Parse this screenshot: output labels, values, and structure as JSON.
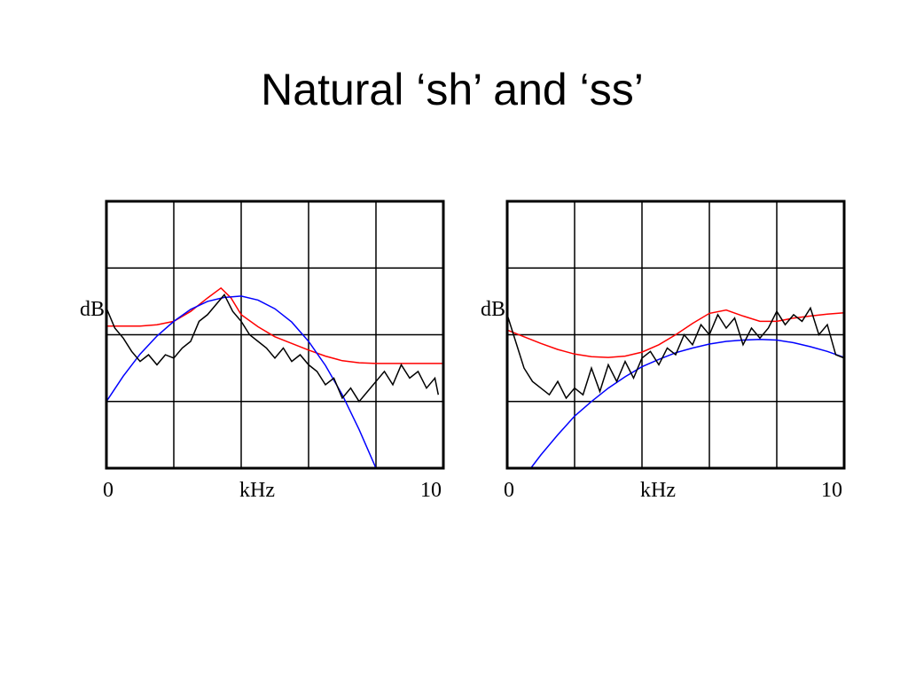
{
  "title": "Natural ‘sh’ and ‘ss’",
  "chart_data": [
    {
      "type": "line",
      "xlabel": "kHz",
      "ylabel": "dB",
      "xlim": [
        0,
        10
      ],
      "ylim": [
        0,
        4
      ],
      "xticks": [
        0,
        10
      ],
      "xgrid": [
        2,
        4,
        6,
        8
      ],
      "ygrid": [
        1,
        2,
        3
      ],
      "series": [
        {
          "color": "#ff0000",
          "x": [
            0,
            0.5,
            1,
            1.5,
            2,
            2.5,
            3,
            3.4,
            3.7,
            4,
            4.5,
            5,
            5.5,
            6,
            6.5,
            7,
            7.5,
            8,
            9,
            10
          ],
          "values": [
            2.13,
            2.13,
            2.13,
            2.15,
            2.2,
            2.35,
            2.55,
            2.7,
            2.55,
            2.3,
            2.12,
            1.97,
            1.87,
            1.77,
            1.68,
            1.61,
            1.58,
            1.57,
            1.57,
            1.57
          ]
        },
        {
          "color": "#0000ff",
          "x": [
            0,
            0.5,
            1,
            1.5,
            2,
            2.5,
            3,
            3.5,
            4,
            4.5,
            5,
            5.5,
            6,
            6.5,
            7,
            7.5,
            8
          ],
          "values": [
            1.0,
            1.38,
            1.71,
            1.98,
            2.2,
            2.38,
            2.5,
            2.56,
            2.58,
            2.52,
            2.39,
            2.19,
            1.9,
            1.54,
            1.1,
            0.58,
            0
          ]
        },
        {
          "color": "#000000",
          "x": [
            0,
            0.25,
            0.5,
            0.75,
            1,
            1.25,
            1.5,
            1.75,
            2,
            2.25,
            2.5,
            2.75,
            3,
            3.25,
            3.5,
            3.75,
            4,
            4.25,
            4.5,
            4.75,
            5,
            5.25,
            5.5,
            5.75,
            6,
            6.25,
            6.5,
            6.75,
            7,
            7.25,
            7.5,
            7.75,
            8,
            8.25,
            8.5,
            8.75,
            9,
            9.25,
            9.5,
            9.75,
            9.85
          ],
          "values": [
            2.4,
            2.1,
            1.95,
            1.75,
            1.6,
            1.7,
            1.55,
            1.7,
            1.65,
            1.8,
            1.9,
            2.2,
            2.3,
            2.45,
            2.6,
            2.35,
            2.2,
            2.0,
            1.9,
            1.8,
            1.65,
            1.8,
            1.6,
            1.7,
            1.55,
            1.45,
            1.25,
            1.35,
            1.05,
            1.2,
            1.0,
            1.15,
            1.3,
            1.45,
            1.25,
            1.55,
            1.35,
            1.45,
            1.2,
            1.35,
            1.1
          ]
        }
      ]
    },
    {
      "type": "line",
      "xlabel": "kHz",
      "ylabel": "dB",
      "xlim": [
        0,
        10
      ],
      "ylim": [
        0,
        4
      ],
      "xticks": [
        0,
        10
      ],
      "xgrid": [
        2,
        4,
        6,
        8
      ],
      "ygrid": [
        1,
        2,
        3
      ],
      "series": [
        {
          "color": "#ff0000",
          "x": [
            0,
            0.5,
            1,
            1.5,
            2,
            2.5,
            3,
            3.5,
            4,
            4.5,
            5,
            5.5,
            6,
            6.5,
            7,
            7.5,
            8,
            8.5,
            9,
            9.5,
            10
          ],
          "values": [
            2.07,
            1.97,
            1.87,
            1.78,
            1.71,
            1.67,
            1.66,
            1.68,
            1.74,
            1.85,
            2.0,
            2.17,
            2.32,
            2.37,
            2.28,
            2.2,
            2.2,
            2.25,
            2.28,
            2.31,
            2.33
          ]
        },
        {
          "color": "#0000ff",
          "x": [
            0.7,
            1,
            1.5,
            2,
            2.5,
            3,
            3.5,
            4,
            4.5,
            5,
            5.5,
            6,
            6.5,
            7,
            7.5,
            8,
            8.5,
            9,
            9.5,
            10
          ],
          "values": [
            0,
            0.2,
            0.5,
            0.78,
            1.0,
            1.2,
            1.37,
            1.52,
            1.63,
            1.73,
            1.8,
            1.86,
            1.9,
            1.92,
            1.93,
            1.92,
            1.88,
            1.82,
            1.75,
            1.66
          ]
        },
        {
          "color": "#000000",
          "x": [
            0,
            0.25,
            0.5,
            0.75,
            1,
            1.25,
            1.5,
            1.75,
            2,
            2.25,
            2.5,
            2.75,
            3,
            3.25,
            3.5,
            3.75,
            4,
            4.25,
            4.5,
            4.75,
            5,
            5.25,
            5.5,
            5.75,
            6,
            6.25,
            6.5,
            6.75,
            7,
            7.25,
            7.5,
            7.75,
            8,
            8.25,
            8.5,
            8.75,
            9,
            9.25,
            9.5,
            9.75,
            10
          ],
          "values": [
            2.3,
            1.9,
            1.5,
            1.3,
            1.2,
            1.1,
            1.3,
            1.05,
            1.2,
            1.1,
            1.5,
            1.15,
            1.55,
            1.3,
            1.6,
            1.35,
            1.65,
            1.75,
            1.55,
            1.8,
            1.7,
            2.0,
            1.85,
            2.15,
            2.0,
            2.3,
            2.1,
            2.25,
            1.85,
            2.1,
            1.95,
            2.1,
            2.35,
            2.15,
            2.3,
            2.2,
            2.4,
            2.0,
            2.15,
            1.7,
            1.65
          ]
        }
      ]
    }
  ]
}
